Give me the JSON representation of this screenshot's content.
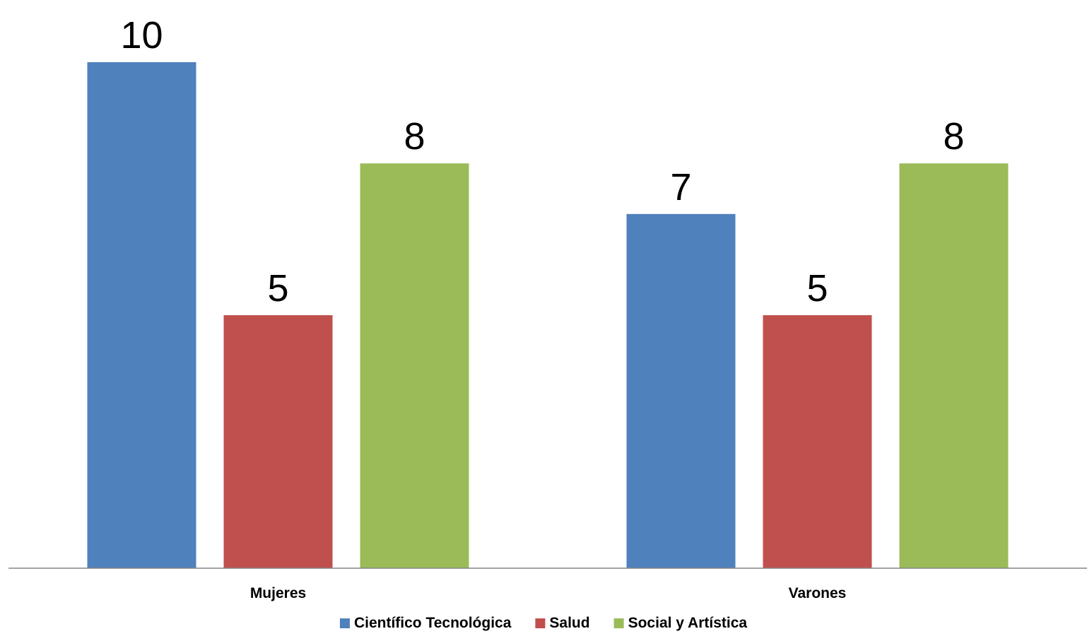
{
  "chart_data": {
    "type": "bar",
    "categories": [
      "Mujeres",
      "Varones"
    ],
    "series": [
      {
        "name": "Científico Tecnológica",
        "values": [
          10,
          7
        ],
        "color": "#4F81BD"
      },
      {
        "name": "Salud",
        "values": [
          5,
          5
        ],
        "color": "#C0504D"
      },
      {
        "name": "Social y Artística",
        "values": [
          8,
          8
        ],
        "color": "#9BBB59"
      }
    ],
    "title": "",
    "xlabel": "",
    "ylabel": "",
    "ylim": [
      0,
      10
    ],
    "grid": false,
    "legend": "bottom",
    "data_labels": true,
    "y_axis_visible": false
  }
}
